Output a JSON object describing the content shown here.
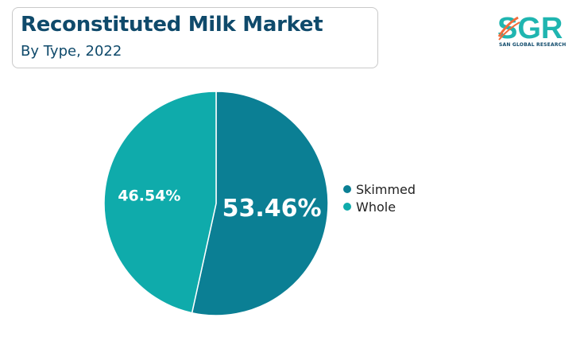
{
  "header": {
    "title": "Reconstituted Milk Market",
    "subtitle": "By Type, 2022"
  },
  "logo": {
    "name": "SGR",
    "tagline": "SAN GLOBAL RESEARCH",
    "colors": [
      "#1fb5b0",
      "#f26b3a"
    ]
  },
  "chart_data": {
    "type": "pie",
    "title": "Reconstituted Milk Market",
    "subtitle": "By Type, 2022",
    "legend_position": "right",
    "slices": [
      {
        "label": "Skimmed",
        "value": 53.46,
        "display": "53.46%",
        "color": "#0b7f94"
      },
      {
        "label": "Whole",
        "value": 46.54,
        "display": "46.54%",
        "color": "#0fabab"
      }
    ]
  }
}
